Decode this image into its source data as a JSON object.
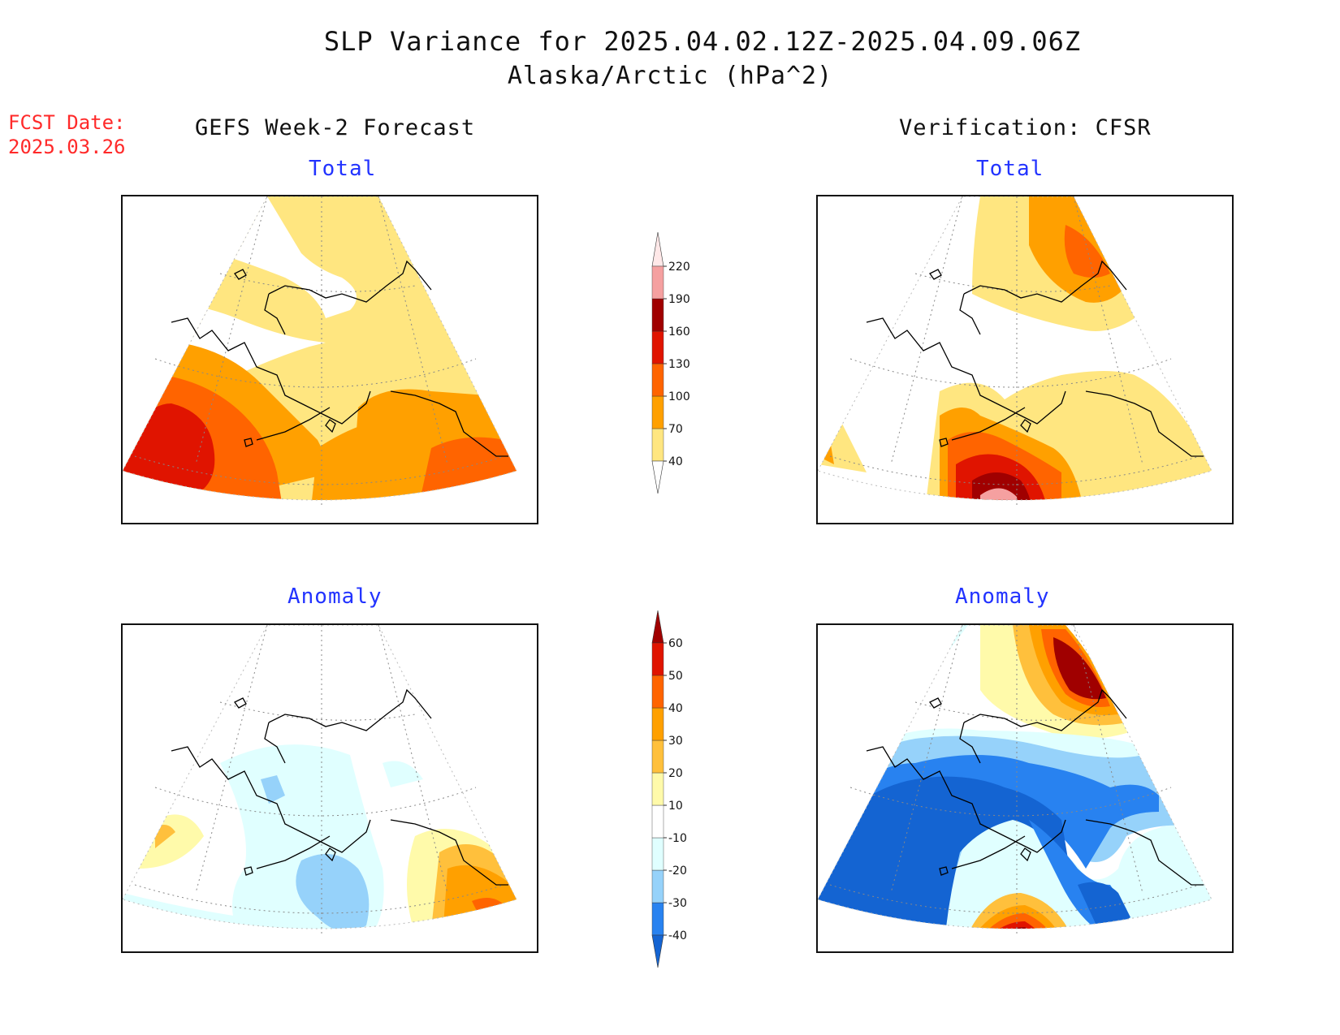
{
  "header": {
    "title": "SLP Variance for 2025.04.02.12Z-2025.04.09.06Z",
    "subtitle": "Alaska/Arctic (hPa^2)"
  },
  "fcst": {
    "label": "FCST Date:",
    "date": "2025.03.26"
  },
  "columns": {
    "left": "GEFS Week-2 Forecast",
    "right": "Verification: CFSR"
  },
  "panels": {
    "top_left": "Total",
    "top_right": "Total",
    "bottom_left": "Anomaly",
    "bottom_right": "Anomaly"
  },
  "colorbars": {
    "total": {
      "labels": [
        "40",
        "70",
        "100",
        "130",
        "160",
        "190",
        "220"
      ],
      "colors": [
        "#ffe680",
        "#ffa000",
        "#ff6400",
        "#e01400",
        "#a00000",
        "#f5a0a0",
        "#ffe8e8"
      ]
    },
    "anomaly": {
      "labels": [
        "-40",
        "-30",
        "-20",
        "-10",
        "10",
        "20",
        "30",
        "40",
        "50",
        "60"
      ],
      "colors": [
        "#1464d2",
        "#2882f0",
        "#96d2fa",
        "#e0ffff",
        "#ffffff",
        "#fffaaa",
        "#ffc03c",
        "#ffa000",
        "#ff6400",
        "#e01400",
        "#a00000"
      ]
    }
  }
}
